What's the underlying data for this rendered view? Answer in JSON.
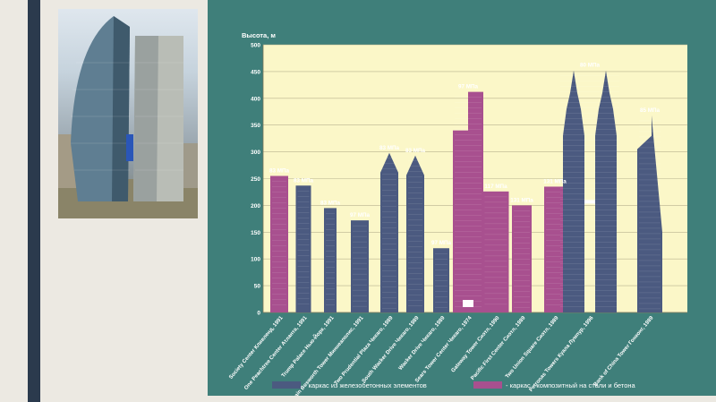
{
  "colors": {
    "panel": "#3f7f7a",
    "plot": "#fbf7c8",
    "rc_frame": "#4b5a80",
    "composite_frame": "#a8508f",
    "left_bar": "#2b3a4d"
  },
  "photo": {
    "icon": "skyscraper-photo"
  },
  "chart_data": {
    "type": "bar",
    "ylabel": "Высота, м",
    "ylim": [
      0,
      500
    ],
    "yticks": [
      0,
      50,
      100,
      150,
      200,
      250,
      300,
      350,
      400,
      450,
      500
    ],
    "grid": true,
    "legend_position": "bottom",
    "series": [
      {
        "name": "- каркас из железобетонных элементов",
        "type": "rc"
      },
      {
        "name": "- каркас - композитный на стали и бетона",
        "type": "composite"
      }
    ],
    "buildings": [
      {
        "label": "Society Center Кливленд, 1991",
        "height": 255,
        "strength": "83 МПа",
        "type": "composite"
      },
      {
        "label": "One Peachtree Center Атланта, 1991",
        "height": 237,
        "strength": "83 МПа",
        "type": "rc"
      },
      {
        "label": "Trump Palace Нью-Йорк, 1991",
        "height": 195,
        "strength": "83 МПа",
        "type": "rc"
      },
      {
        "label": "Dain Bosworth Tower Миннеаполис, 1991",
        "height": 172,
        "strength": "97 МПа",
        "type": "rc"
      },
      {
        "label": "Two Prudential Plaza Чикаго, 1989",
        "height": 298,
        "strength": "83 МПа",
        "type": "rc"
      },
      {
        "label": "South Wacker Drive Чикаго, 1989",
        "height": 293,
        "strength": "83 МПа",
        "type": "rc"
      },
      {
        "label": "Wacker Drive Чикаго, 1989",
        "height": 120,
        "strength": "97 МПа",
        "type": "rc"
      },
      {
        "label": "Sears Tower Center Чикаго, 1974",
        "height": 412,
        "strength": "97 МПа",
        "type": "composite"
      },
      {
        "label": "Gateway Tower Сиэтл, 1990",
        "height": 226,
        "strength": "117 МПа",
        "type": "composite"
      },
      {
        "label": "Pacific First Center Сиэтл, 1989",
        "height": 200,
        "strength": "131 МПа",
        "type": "composite"
      },
      {
        "label": "Two Union Square Сиэтл, 1989",
        "height": 235,
        "strength": "131 МПа",
        "type": "composite"
      },
      {
        "label": "Petronas Towers Куала Лумпур, 1996",
        "height": 452,
        "strength": "80 МПа",
        "type": "rc"
      },
      {
        "label": "Bank of China Tower Гонконг, 1989",
        "height": 368,
        "strength": "85 МПа",
        "type": "rc"
      }
    ]
  }
}
